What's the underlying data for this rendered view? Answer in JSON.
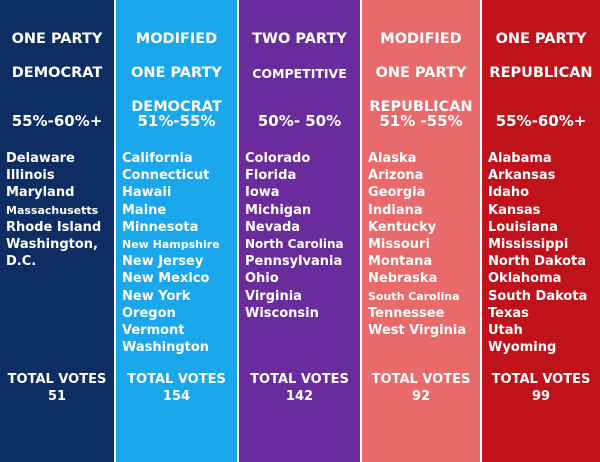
{
  "columns": [
    {
      "title_line1": "ONE PARTY",
      "title_line2": "DEMOCRAT",
      "title_line3": "",
      "percent": "55%-60%+",
      "states": [
        "Delaware",
        "Illinois",
        "Maryland",
        "Massachusetts",
        "Rhode Island",
        "Washington,",
        "D.C."
      ],
      "total_label": "TOTAL VOTES",
      "total_value": "51",
      "color": "#0e2d62"
    },
    {
      "title_line1": "MODIFIED",
      "title_line2": "ONE PARTY",
      "title_line3": "DEMOCRAT",
      "percent": "51%-55%",
      "states": [
        "California",
        "Connecticut",
        "Hawaii",
        "Maine",
        "Minnesota",
        "New Hampshire",
        "New Jersey",
        "New Mexico",
        "New York",
        "Oregon",
        "Vermont",
        "Washington"
      ],
      "total_label": "TOTAL VOTES",
      "total_value": "154",
      "color": "#1aa7ec"
    },
    {
      "title_line1": "TWO PARTY",
      "title_line2": "COMPETITIVE",
      "title_line3": "",
      "percent": "50%- 50%",
      "states": [
        "Colorado",
        "Florida",
        "Iowa",
        "Michigan",
        "Nevada",
        "North Carolina",
        "Pennsylvania",
        "Ohio",
        "Virginia",
        "Wisconsin"
      ],
      "total_label": "TOTAL VOTES",
      "total_value": "142",
      "color": "#6a2c9c"
    },
    {
      "title_line1": "MODIFIED",
      "title_line2": "ONE PARTY",
      "title_line3": "REPUBLICAN",
      "percent": "51% -55%",
      "states": [
        "Alaska",
        "Arizona",
        "Georgia",
        "Indiana",
        "Kentucky",
        "Missouri",
        "Montana",
        "Nebraska",
        "South Carolina",
        "Tennessee",
        "West Virginia"
      ],
      "total_label": "TOTAL VOTES",
      "total_value": "92",
      "color": "#e86a6a"
    },
    {
      "title_line1": "ONE PARTY",
      "title_line2": "REPUBLICAN",
      "title_line3": "",
      "percent": "55%-60%+",
      "states": [
        "Alabama",
        "Arkansas",
        "Idaho",
        "Kansas",
        "Louisiana",
        "Mississippi",
        "North Dakota",
        "Oklahoma",
        "South Dakota",
        "Texas",
        "Utah",
        "Wyoming"
      ],
      "total_label": "TOTAL VOTES",
      "total_value": "99",
      "color": "#c0121b"
    }
  ]
}
